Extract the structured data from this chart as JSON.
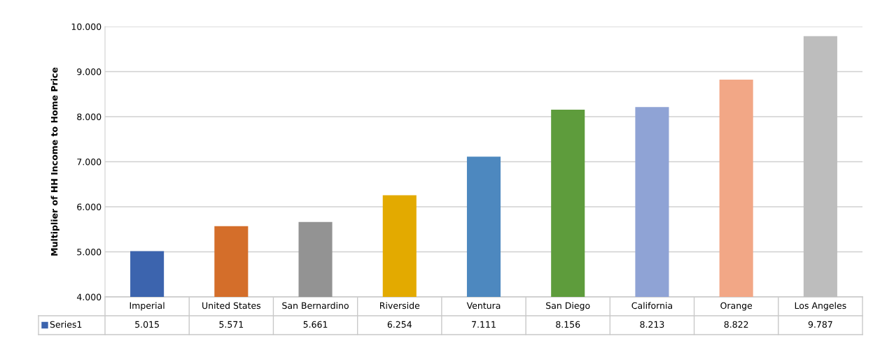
{
  "chart_data": {
    "type": "bar",
    "ylabel": "Multiplier of HH Income to Home Price",
    "categories": [
      "Imperial",
      "United States",
      "San Bernardino",
      "Riverside",
      "Ventura",
      "San Diego",
      "California",
      "Orange",
      "Los Angeles"
    ],
    "series": [
      {
        "name": "Series1",
        "color": "#3c64ae",
        "colors": [
          "#3c64ae",
          "#d46e2a",
          "#939393",
          "#e3aa00",
          "#4d88bf",
          "#5e9c3c",
          "#8fa3d5",
          "#f2a786",
          "#bdbdbd"
        ],
        "values": [
          5.015,
          5.571,
          5.661,
          6.254,
          7.111,
          8.156,
          8.213,
          8.822,
          9.787
        ],
        "value_labels": [
          "5.015",
          "5.571",
          "5.661",
          "6.254",
          "7.111",
          "8.156",
          "8.213",
          "8.822",
          "9.787"
        ]
      }
    ],
    "ylim": [
      4,
      10
    ],
    "yticks": [
      {
        "value": 4,
        "label": "4.000"
      },
      {
        "value": 5,
        "label": "5.000"
      },
      {
        "value": 6,
        "label": "6.000"
      },
      {
        "value": 7,
        "label": "7.000"
      },
      {
        "value": 8,
        "label": "8.000"
      },
      {
        "value": 9,
        "label": "9.000"
      },
      {
        "value": 10,
        "label": "10.000"
      }
    ],
    "grid": "y",
    "legend": "bottom",
    "data_labels": true
  }
}
